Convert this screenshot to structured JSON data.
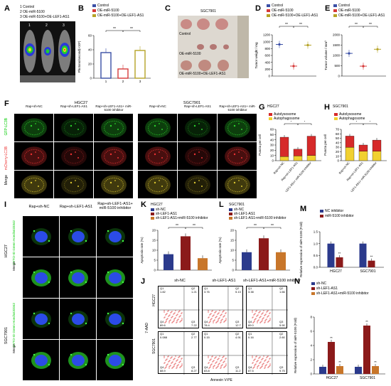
{
  "colors": {
    "control": "#3a4fa6",
    "oe": "#d63a3a",
    "oe2": "#b5a326",
    "red": "#d62a2a",
    "yellow": "#f1d030",
    "navy": "#2b3a8c",
    "darkred": "#8b1a1a",
    "orange": "#c8762a",
    "green": "#2bd12b"
  },
  "panelA": {
    "label": "A",
    "legend": [
      "1 Control",
      "2 OE-miR-5100",
      "3 OE-miR-5100+OE-LEF1-AS1"
    ],
    "nums": [
      "1",
      "2",
      "3"
    ]
  },
  "panelB": {
    "label": "B",
    "legend": [
      "Control",
      "OE-miR-5100",
      "OE-miR-5100+OE-LEF1-AS1"
    ],
    "ylabel": "Photons/second(×10⁸)",
    "sig": [
      "**",
      "**"
    ],
    "chart_data": {
      "type": "bar",
      "categories": [
        "1",
        "2",
        "3"
      ],
      "values": [
        36,
        13,
        39
      ],
      "ylim": [
        0,
        60
      ],
      "yticks": [
        "0",
        "20",
        "40",
        "60"
      ]
    }
  },
  "panelC": {
    "label": "C",
    "title": "SGC7901",
    "rows": [
      "Control",
      "OE-miR-5100",
      "OE-miR-5100+OE-LEF1-AS1"
    ]
  },
  "panelD": {
    "label": "D",
    "legend": [
      "Control",
      "OE-miR-5100",
      "OE-miR-5100+OE-LEF1-AS1"
    ],
    "ylabel": "Tumor weight / mg",
    "sig": [
      "**",
      "**"
    ],
    "chart_data": {
      "type": "line",
      "values": [
        920,
        290,
        900
      ],
      "ylim": [
        0,
        1200
      ],
      "yticks": [
        "0",
        "200",
        "400",
        "600",
        "800",
        "1000",
        "1200"
      ]
    }
  },
  "panelE": {
    "label": "E",
    "legend": [
      "Control",
      "OE-miR-5100",
      "OE-miR-5100+OE-LEF1-AS1"
    ],
    "ylabel": "Tumor volume / mm³",
    "sig": [
      "**",
      "**"
    ],
    "chart_data": {
      "type": "line",
      "values": [
        1100,
        480,
        1300
      ],
      "ylim": [
        0,
        2000
      ],
      "yticks": [
        "0",
        "500",
        "1000",
        "1500",
        "2000"
      ]
    }
  },
  "panelF": {
    "label": "F",
    "groups": [
      "HGC27",
      "SGC7901"
    ],
    "cols": [
      "Rap+sh-NC",
      "Rap+sh-LEF1-AS1",
      "Rap+sh-LEF1-AS1+ miR-5100 inhibitor",
      "Rap+sh-NC",
      "Rap+sh-LEF1-AS1",
      "Rap+sh-LEF1-AS1+ miR-5100 inhibitor"
    ],
    "rows": [
      "GFP-LC3B",
      "mCherry-LC3B",
      "Merge"
    ]
  },
  "panelG": {
    "label": "G",
    "title": "HGC27",
    "legend": [
      "Autolysosome",
      "Autophagosome"
    ],
    "ylabel": "Puncta per cell",
    "sig": [
      "*",
      "*"
    ],
    "chart_data": {
      "type": "bar",
      "categories": [
        "Rap+sh-NC",
        "Rap+sh-LEF1-AS1",
        "Rap+sh-LEF1-AS1+ miR-5100 inhibitor"
      ],
      "series": [
        {
          "name": "Autophagosome",
          "values": [
            8,
            9,
            10
          ]
        },
        {
          "name": "Autolysosome",
          "values": [
            37,
            13,
            37
          ]
        }
      ],
      "ylim": [
        0,
        60
      ],
      "yticks": [
        "0",
        "10",
        "20",
        "30",
        "40",
        "50",
        "60"
      ]
    }
  },
  "panelH": {
    "label": "H",
    "title": "SGC7901",
    "legend": [
      "Autolysosome",
      "Autophagosome"
    ],
    "ylabel": "Puncta per cell",
    "sig": [
      "*",
      "*"
    ],
    "chart_data": {
      "type": "bar",
      "categories": [
        "Rap+sh-NC",
        "Rap+sh-LEF1-AS1",
        "Rap+sh-LEF1-AS1+ miR-5100 inhibitor"
      ],
      "series": [
        {
          "name": "Autophagosome",
          "values": [
            30,
            21,
            21
          ]
        },
        {
          "name": "Autolysosome",
          "values": [
            25,
            14,
            25
          ]
        }
      ],
      "ylim": [
        0,
        70
      ],
      "yticks": [
        "0",
        "10",
        "20",
        "30",
        "40",
        "50",
        "60",
        "70"
      ]
    }
  },
  "panelI": {
    "label": "I",
    "cols": [
      "Rap+sh-NC",
      "Rap+sh-LEF1-AS1",
      "Rap+sh-LEF1-AS1+ miR-5100 inhibitor"
    ],
    "groups": [
      "HGC27",
      "SGC7901"
    ],
    "rows": [
      "CYTO-ID Green  Hoechst33342",
      "Merge",
      "CYTO-ID Green  Hoechst33342",
      "Merge"
    ]
  },
  "panelK": {
    "label": "K",
    "title": "HGC27",
    "legend": [
      "sh-NC",
      "sh-LEF1-AS1",
      "sh-LEF1-AS1+miR-5100 inhibitor"
    ],
    "ylabel": "Apoptosis rate (%)",
    "sig": [
      "**",
      "**"
    ],
    "chart_data": {
      "type": "bar",
      "values": [
        8,
        17,
        6
      ],
      "ylim": [
        0,
        20
      ],
      "yticks": [
        "0",
        "5",
        "10",
        "15",
        "20"
      ]
    }
  },
  "panelL": {
    "label": "L",
    "title": "SGC7901",
    "legend": [
      "sh-NC",
      "sh-LEF1-AS1",
      "sh-LEF1-AS1+miR-5100 inhibitor"
    ],
    "ylabel": "Apoptosis rate (%)",
    "sig": [
      "**",
      "**"
    ],
    "chart_data": {
      "type": "bar",
      "values": [
        9,
        16,
        9
      ],
      "ylim": [
        0,
        20
      ],
      "yticks": [
        "0",
        "5",
        "10",
        "15",
        "20"
      ]
    }
  },
  "panelM": {
    "label": "M",
    "legend": [
      "NC inhibitor",
      "miR-5100 inhibitor"
    ],
    "ylabel": "Relative expression of miR-5100 (Fold)",
    "sig": [
      "**",
      "**"
    ],
    "chart_data": {
      "type": "bar",
      "categories": [
        "HGC27",
        "SGC7901"
      ],
      "series": [
        {
          "name": "NC inhibitor",
          "values": [
            1.0,
            1.0
          ]
        },
        {
          "name": "miR-5100 inhibitor",
          "values": [
            0.42,
            0.28
          ]
        }
      ],
      "ylim": [
        0,
        1.5
      ],
      "yticks": [
        "0.0",
        "0.5",
        "1.0",
        "1.5"
      ]
    }
  },
  "panelJ": {
    "label": "J",
    "cols": [
      "sh-NC",
      "sh-LEF1-AS1",
      "sh-LEF1-AS1+miR-5100 inhibitor"
    ],
    "rows": [
      "HGC27",
      "SGC7901"
    ],
    "ylabel": "7-AAD",
    "xlabel": "Annexin V-PE",
    "quads": [
      [
        [
          "Q1",
          "1.82"
        ],
        [
          "Q2",
          "1.21"
        ],
        [
          "Q4",
          "89.6"
        ],
        [
          "Q3",
          "7.22"
        ]
      ],
      [
        [
          "Q1",
          "3.76"
        ],
        [
          "Q2",
          "5.13"
        ],
        [
          "Q4",
          "78.4"
        ],
        [
          "Q3",
          "12.7"
        ]
      ],
      [
        [
          "Q1",
          "3.38"
        ],
        [
          "Q2",
          "1.66"
        ],
        [
          "Q4",
          "89.0"
        ],
        [
          "Q3",
          "5.90"
        ]
      ],
      [
        [
          "Q1",
          "0.088"
        ],
        [
          "Q2",
          "2.77"
        ],
        [
          "Q4",
          "88.9"
        ],
        [
          "Q3",
          "8.27"
        ]
      ],
      [
        [
          "Q1",
          "0.15"
        ],
        [
          "Q2",
          "4.91"
        ],
        [
          "Q4",
          "83.8"
        ],
        [
          "Q3",
          "11.2"
        ]
      ],
      [
        [
          "Q1",
          "0.16"
        ],
        [
          "Q2",
          "2.60"
        ],
        [
          "Q4",
          "87.5"
        ],
        [
          "Q3",
          "9.75"
        ]
      ]
    ]
  },
  "panelN": {
    "label": "N",
    "legend": [
      "sh-NC",
      "sh-LEF1-AS1",
      "sh-LEF1-AS1+miR-5100 inhibitor"
    ],
    "ylabel": "Relative expression of miR-5100 (Fold)",
    "sig": [
      "**",
      "**",
      "**",
      "**"
    ],
    "chart_data": {
      "type": "bar",
      "categories": [
        "HGC27",
        "SGC7901"
      ],
      "series": [
        {
          "name": "sh-NC",
          "values": [
            1.0,
            1.0
          ]
        },
        {
          "name": "sh-LEF1-AS1",
          "values": [
            4.5,
            6.8
          ]
        },
        {
          "name": "sh-LEF1-AS1+miR-5100 inhibitor",
          "values": [
            1.1,
            1.1
          ]
        }
      ],
      "ylim": [
        0,
        8
      ],
      "yticks": [
        "0",
        "2",
        "4",
        "6",
        "8"
      ]
    }
  }
}
